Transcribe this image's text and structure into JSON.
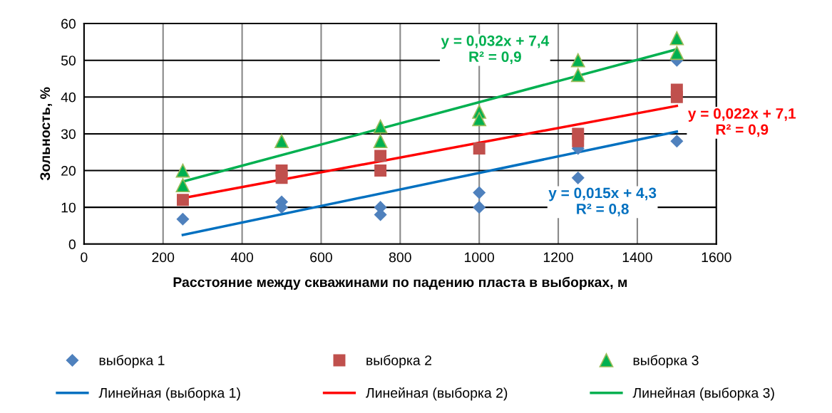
{
  "chart_data": {
    "type": "scatter",
    "xlabel": "Расстояние между скважинами по падению пласта в выборках, м",
    "ylabel": "Зольность, %",
    "xlim": [
      0,
      1600
    ],
    "xticks": [
      0,
      200,
      400,
      600,
      800,
      1000,
      1200,
      1400,
      1600
    ],
    "ylim": [
      0,
      60
    ],
    "yticks": [
      0,
      10,
      20,
      30,
      40,
      50,
      60
    ],
    "grid": true,
    "legend": "bottom",
    "series": [
      {
        "name": "выборка 1",
        "marker": "diamond",
        "color": "#4f81bd",
        "x": [
          250,
          500,
          500,
          750,
          750,
          1000,
          1000,
          1250,
          1250,
          1500,
          1500
        ],
        "values": [
          6.8,
          11.5,
          10,
          10,
          8,
          14,
          10,
          26,
          18,
          50,
          28
        ]
      },
      {
        "name": "Линейная (выборка 1)",
        "type": "line",
        "color": "#0070c0",
        "x": [
          250,
          1500
        ],
        "values": [
          2.5,
          30.6
        ]
      },
      {
        "name": "выборка 2",
        "marker": "square",
        "color": "#c0504d",
        "x": [
          250,
          500,
          500,
          750,
          750,
          1000,
          1250,
          1250,
          1500,
          1500
        ],
        "values": [
          12,
          20,
          18,
          24,
          20,
          26,
          30,
          28,
          42,
          40
        ]
      },
      {
        "name": "Линейная (выборка 2)",
        "type": "line",
        "color": "#ff0000",
        "x": [
          250,
          1500
        ],
        "values": [
          12.5,
          37.6
        ]
      },
      {
        "name": "выборка 3",
        "marker": "triangle",
        "color": "#00b050",
        "x": [
          250,
          250,
          500,
          750,
          750,
          1000,
          1000,
          1250,
          1250,
          1500,
          1500
        ],
        "values": [
          20,
          16,
          28,
          32,
          28,
          36,
          34,
          50,
          46,
          56,
          52
        ]
      },
      {
        "name": "Линейная (выборка 3)",
        "type": "line",
        "color": "#00b050",
        "x": [
          250,
          1500
        ],
        "values": [
          17,
          53
        ]
      }
    ],
    "annotations": [
      "y = 0,015x + 4,3\nR² = 0,8",
      "y = 0,022x + 7,1\nR² = 0,9",
      "y = 0,032x + 7,4\nR² = 0,9"
    ]
  }
}
